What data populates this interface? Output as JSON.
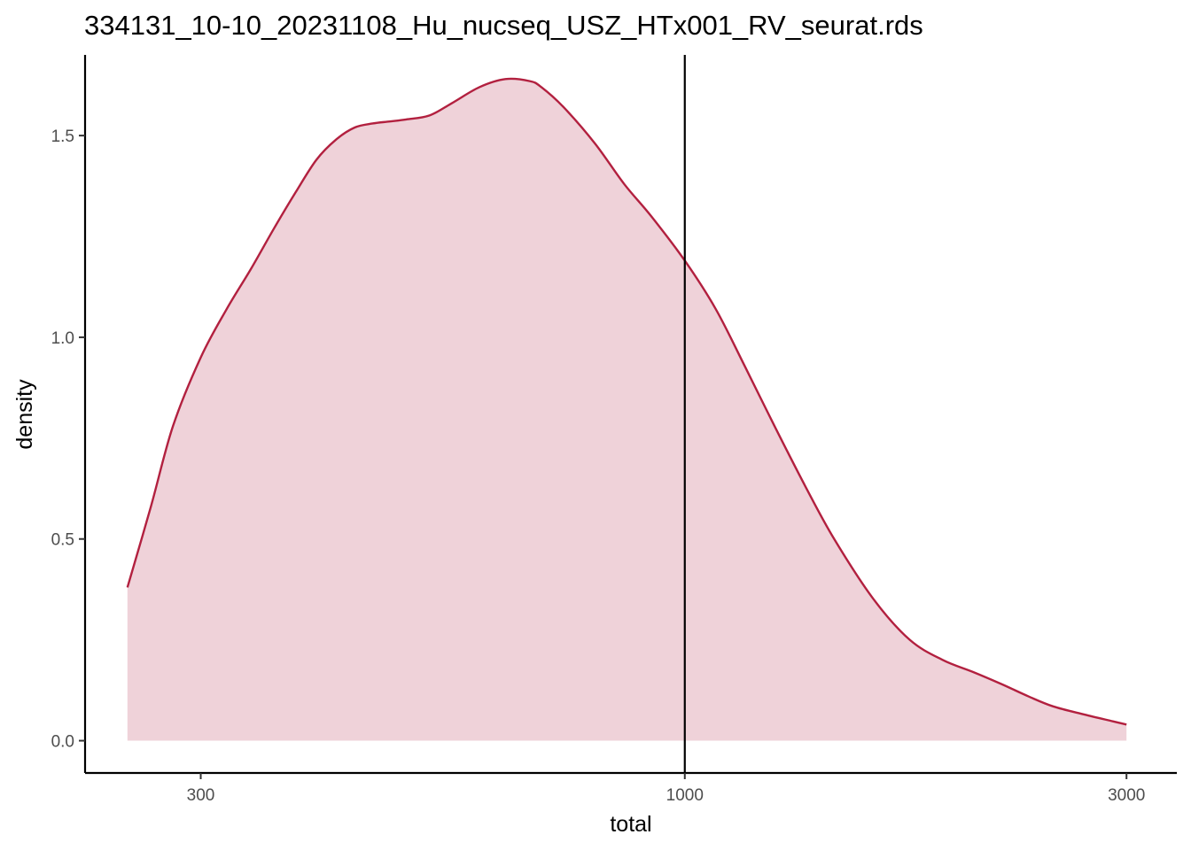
{
  "chart_data": {
    "type": "area",
    "title": "334131_10-10_20231108_Hu_nucseq_USZ_HTx001_RV_seurat.rds",
    "xlabel": "total",
    "ylabel": "density",
    "x_scale": "log10",
    "xlim": [
      225,
      3400
    ],
    "ylim": [
      -0.08,
      1.7
    ],
    "x_ticks": [
      300,
      1000,
      3000
    ],
    "x_tick_labels": [
      "300",
      "1000",
      "3000"
    ],
    "y_ticks": [
      0.0,
      0.5,
      1.0,
      1.5
    ],
    "y_tick_labels": [
      "0.0",
      "0.5",
      "1.0",
      "1.5"
    ],
    "grid": false,
    "legend": "none",
    "reference_line_x": 1000,
    "colors": {
      "line": "#B2203F",
      "fill": "#EFD2D9",
      "reference_line": "#000000"
    },
    "series": [
      {
        "x": [
          250,
          265,
          280,
          300,
          320,
          340,
          360,
          380,
          400,
          420,
          440,
          460,
          480,
          500,
          530,
          560,
          600,
          640,
          680,
          700,
          740,
          800,
          860,
          920,
          1000,
          1080,
          1160,
          1250,
          1350,
          1450,
          1600,
          1750,
          1900,
          2050,
          2200,
          2350,
          2500,
          2700,
          2900,
          3000
        ],
        "y": [
          0.38,
          0.58,
          0.78,
          0.95,
          1.07,
          1.17,
          1.27,
          1.36,
          1.44,
          1.49,
          1.52,
          1.53,
          1.535,
          1.54,
          1.55,
          1.58,
          1.62,
          1.64,
          1.635,
          1.62,
          1.57,
          1.48,
          1.38,
          1.3,
          1.19,
          1.07,
          0.93,
          0.78,
          0.63,
          0.5,
          0.35,
          0.25,
          0.2,
          0.17,
          0.14,
          0.11,
          0.085,
          0.065,
          0.048,
          0.04
        ]
      }
    ]
  }
}
